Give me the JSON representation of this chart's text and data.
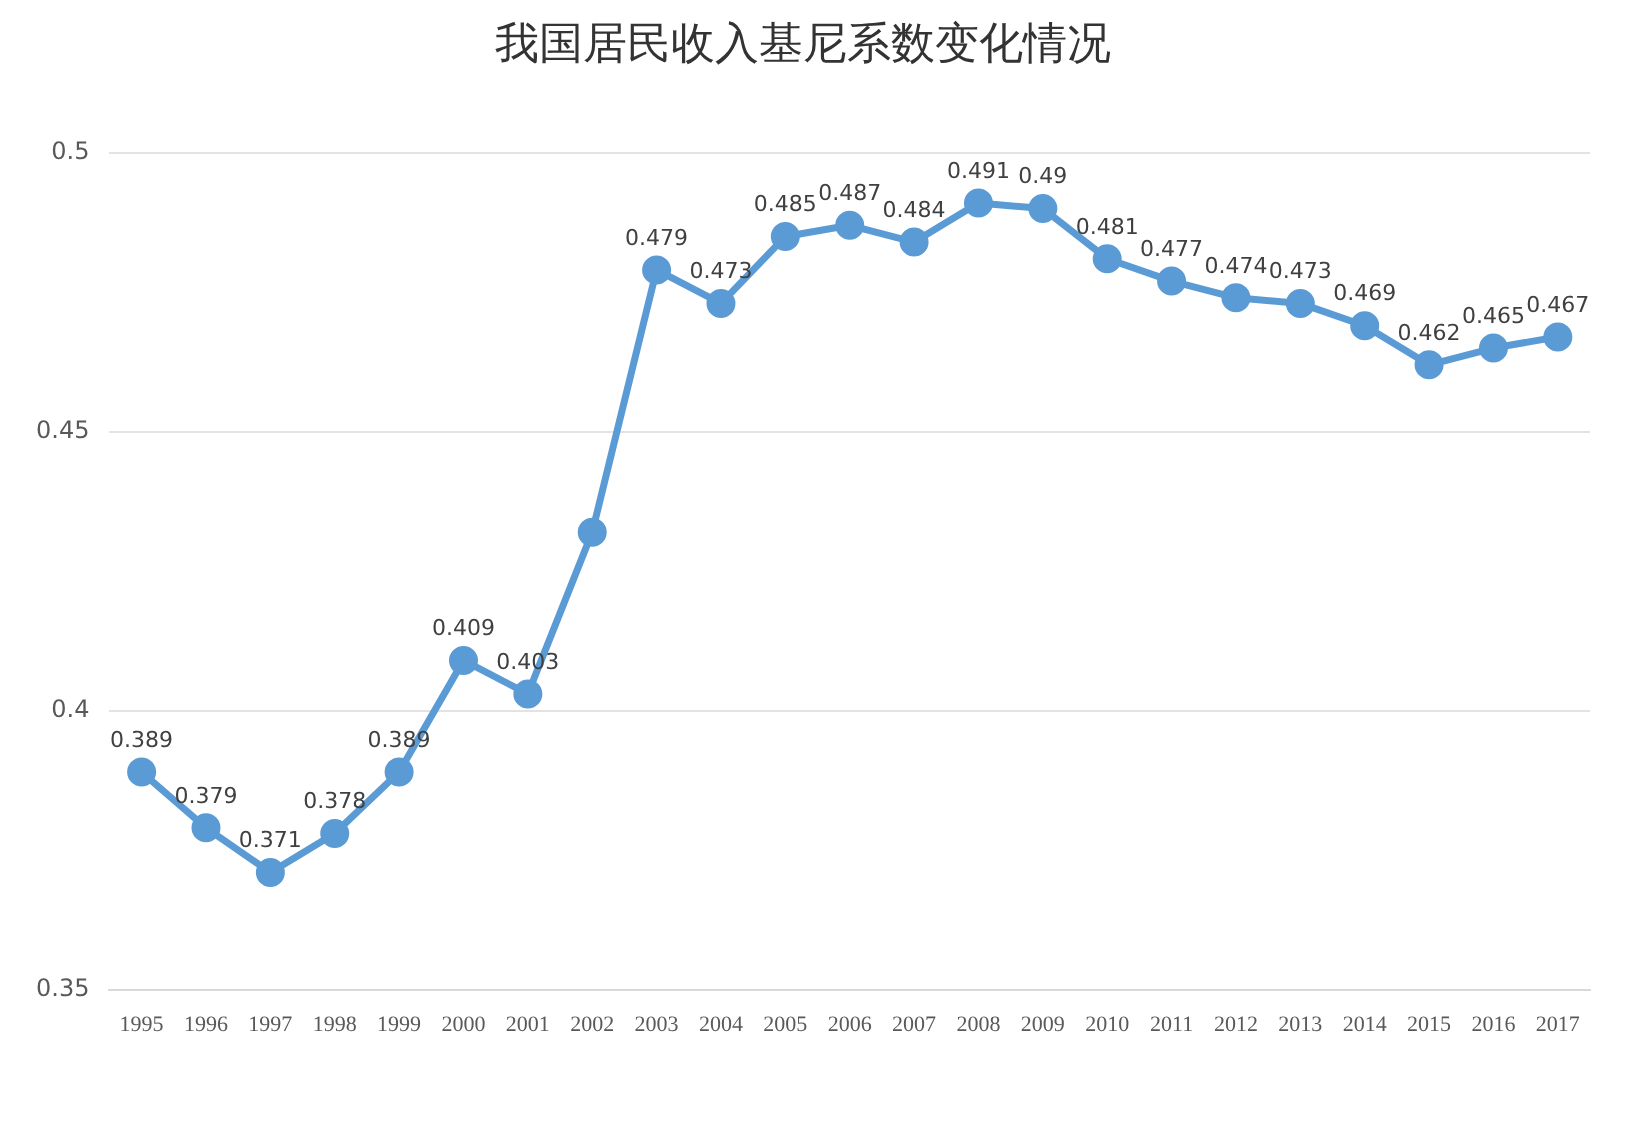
{
  "chart_data": {
    "type": "line",
    "title": "我国居民收入基尼系数变化情况",
    "categories": [
      "1995",
      "1996",
      "1997",
      "1998",
      "1999",
      "2000",
      "2001",
      "2002",
      "2003",
      "2004",
      "2005",
      "2006",
      "2007",
      "2008",
      "2009",
      "2010",
      "2011",
      "2012",
      "2013",
      "2014",
      "2015",
      "2016",
      "2017"
    ],
    "series": [
      {
        "color": "#5b9bd5",
        "values": [
          0.389,
          0.379,
          0.371,
          0.378,
          0.389,
          0.409,
          0.403,
          0.432,
          0.479,
          0.473,
          0.485,
          0.487,
          0.484,
          0.491,
          0.49,
          0.481,
          0.477,
          0.474,
          0.473,
          0.469,
          0.462,
          0.465,
          0.467
        ],
        "value_labels": [
          "0.389",
          "0.379",
          "0.371",
          "0.378",
          "0.389",
          "0.409",
          "0.403",
          null,
          "0.479",
          "0.473",
          "0.485",
          "0.487",
          "0.484",
          "0.491",
          "0.49",
          "0.481",
          "0.477",
          "0.474",
          "0.473",
          "0.469",
          "0.462",
          "0.465",
          "0.467"
        ]
      }
    ],
    "ylim": [
      0.35,
      0.5
    ],
    "yticks": [
      0.35,
      0.4,
      0.45,
      0.5
    ],
    "grid": "y",
    "legend": false,
    "marker": "circle",
    "line_style": "solid"
  }
}
